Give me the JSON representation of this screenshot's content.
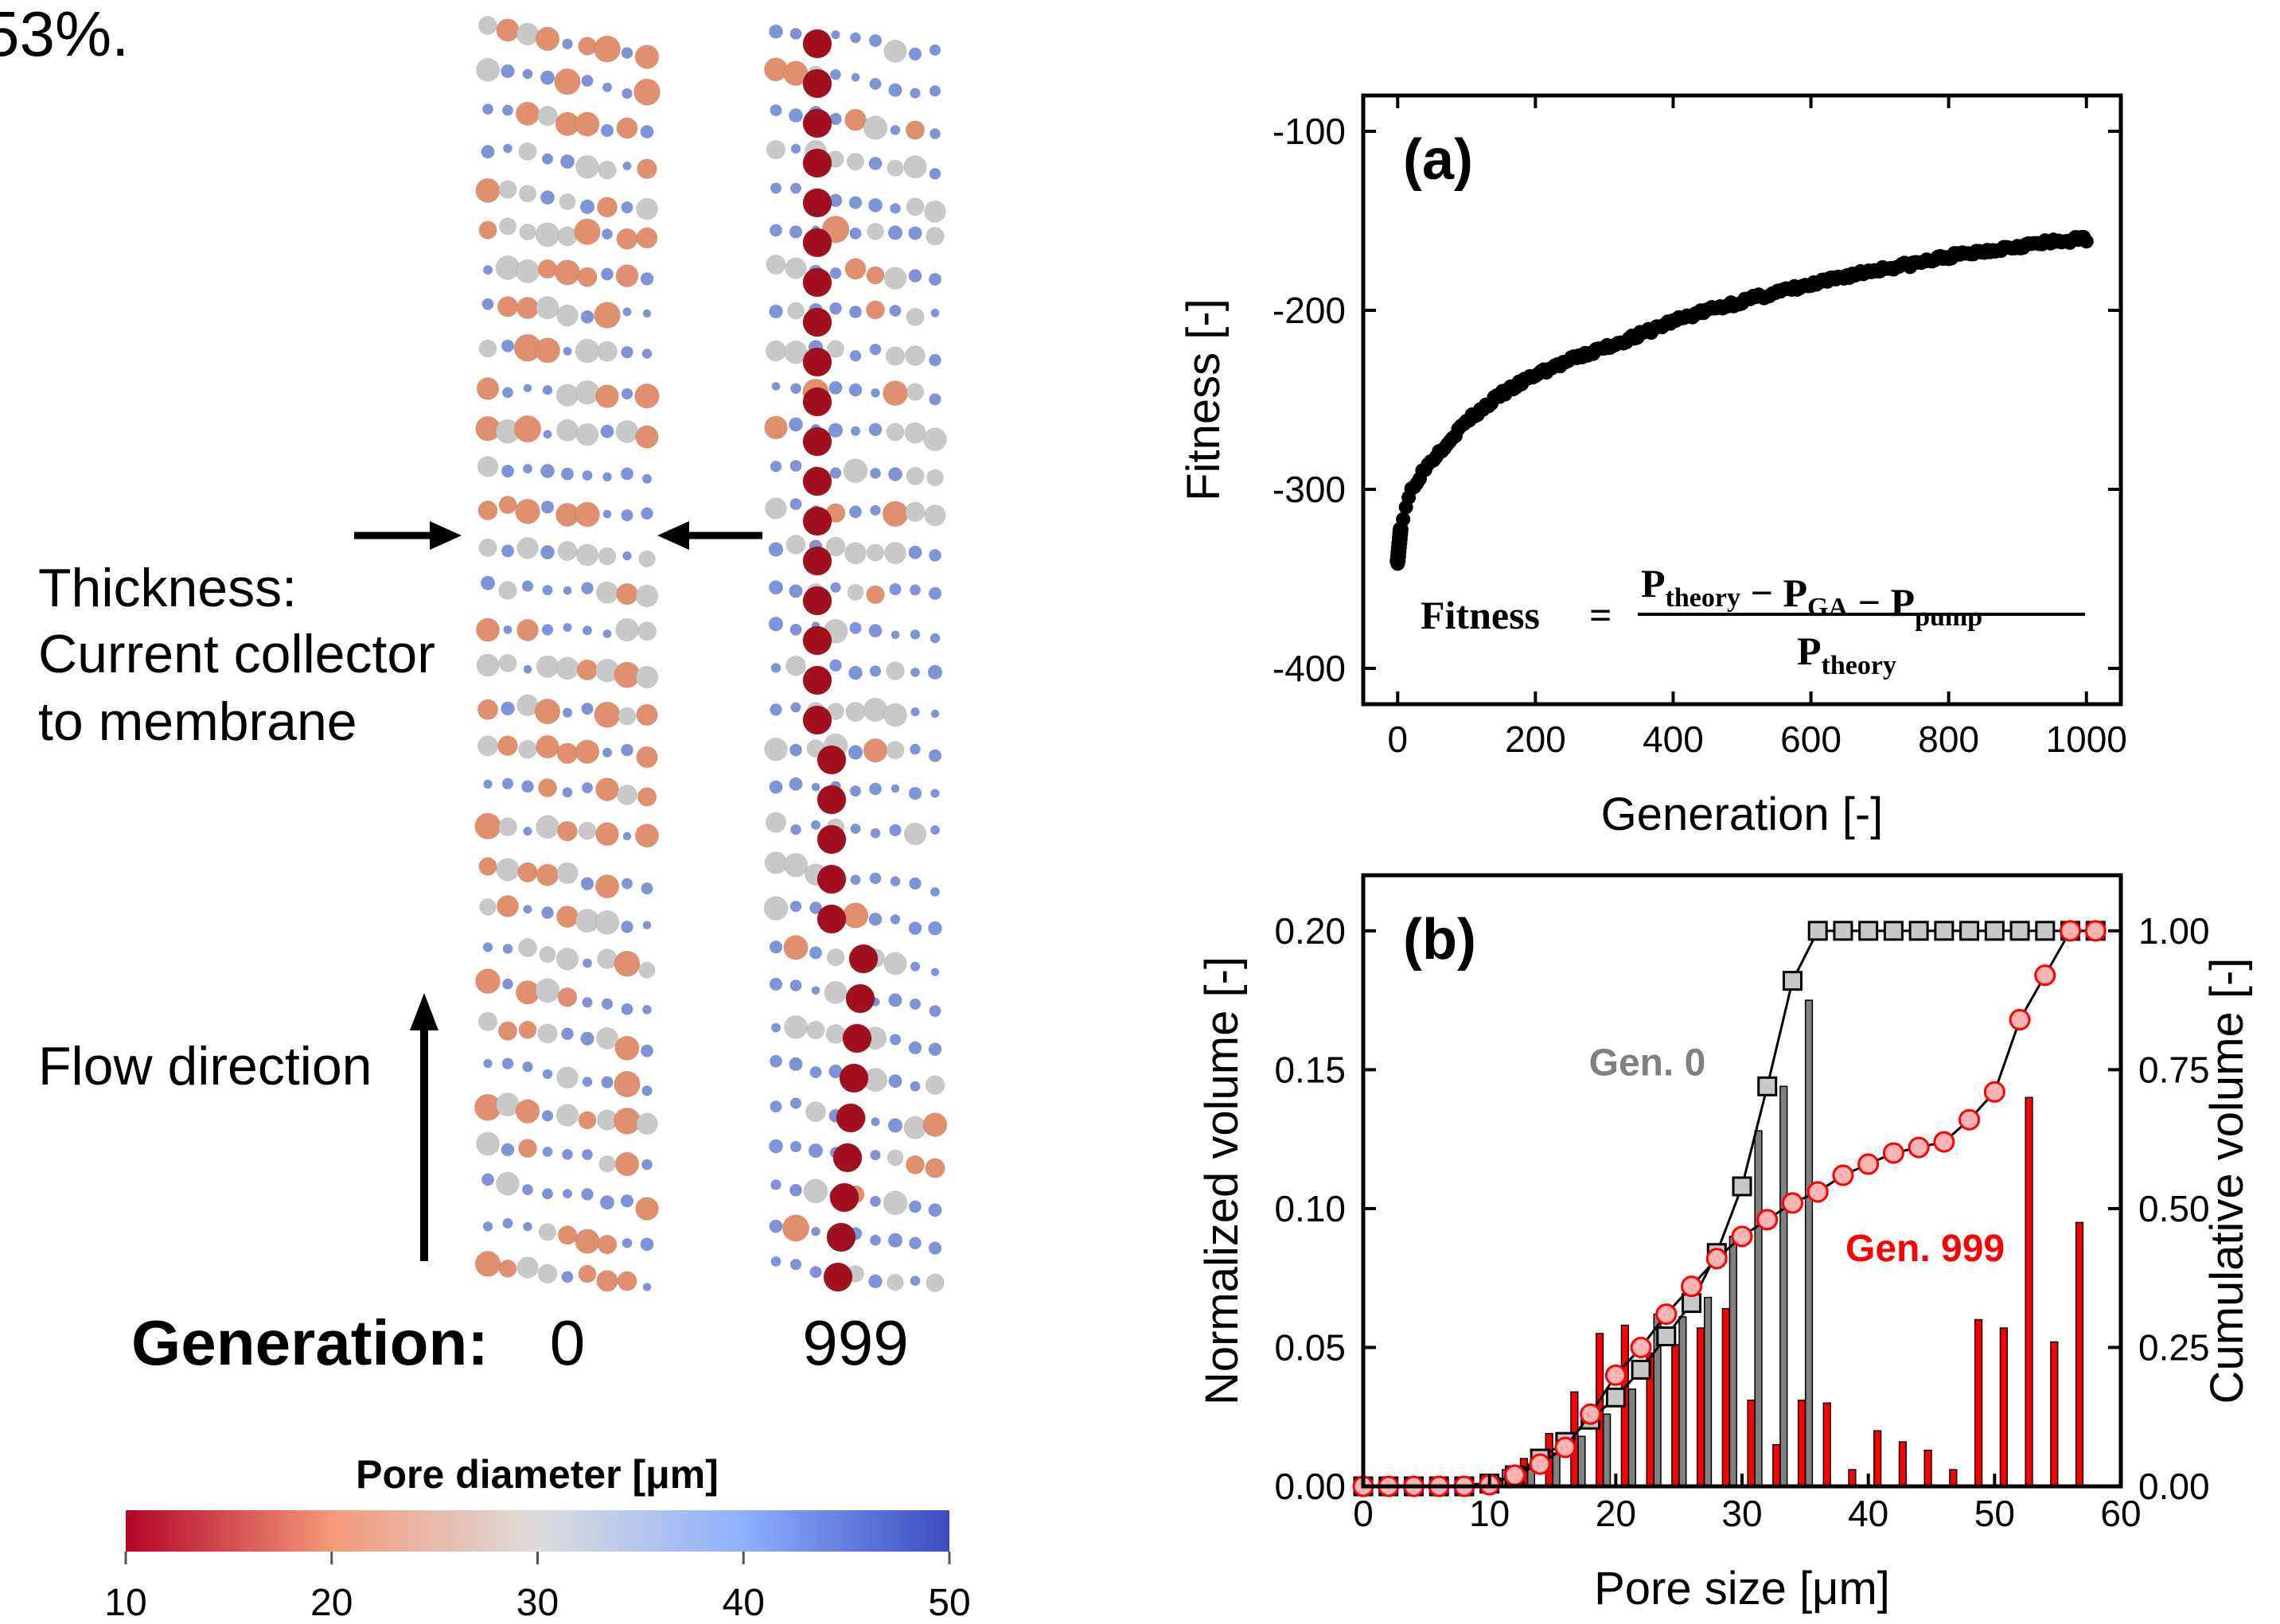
{
  "left_panel": {
    "corner_text": "53%.",
    "thickness_label_lines": [
      "Thickness:",
      "Current collector",
      "to membrane"
    ],
    "flow_label": "Flow direction",
    "generation_label": "Generation:",
    "generation_values": [
      "0",
      "999"
    ],
    "colorbar": {
      "title": "Pore diameter [μm]",
      "ticks": [
        "10",
        "20",
        "30",
        "40",
        "50"
      ],
      "range": [
        10,
        50
      ],
      "colors": [
        "#b40426",
        "#f4987a",
        "#dddcdc",
        "#8db0fe",
        "#3b4cc0"
      ]
    }
  },
  "chart_data": [
    {
      "type": "scatter",
      "panel_label": "(a)",
      "xlabel": "Generation [-]",
      "ylabel": "Fitness [-]",
      "xlim": [
        -50,
        1050
      ],
      "ylim": [
        -420,
        -80
      ],
      "xticks": [
        0,
        200,
        400,
        600,
        800,
        1000
      ],
      "yticks": [
        -100,
        -200,
        -300,
        -400
      ],
      "xtick_labels": [
        "0",
        "200",
        "400",
        "600",
        "800",
        "1000"
      ],
      "ytick_labels": [
        "-100",
        "-200",
        "-300",
        "-400"
      ],
      "grid": false,
      "curve_points": [
        [
          0,
          -340
        ],
        [
          2,
          -332
        ],
        [
          5,
          -322
        ],
        [
          10,
          -312
        ],
        [
          20,
          -300
        ],
        [
          40,
          -288
        ],
        [
          60,
          -279
        ],
        [
          100,
          -262
        ],
        [
          150,
          -247
        ],
        [
          200,
          -236
        ],
        [
          250,
          -228
        ],
        [
          300,
          -221
        ],
        [
          350,
          -214
        ],
        [
          400,
          -206
        ],
        [
          450,
          -200
        ],
        [
          500,
          -195
        ],
        [
          550,
          -190
        ],
        [
          600,
          -186
        ],
        [
          650,
          -181
        ],
        [
          700,
          -177
        ],
        [
          750,
          -174
        ],
        [
          800,
          -170
        ],
        [
          850,
          -167
        ],
        [
          900,
          -164
        ],
        [
          950,
          -162
        ],
        [
          1000,
          -160
        ]
      ],
      "series_color": "#000000",
      "formula": {
        "lhs": "Fitness",
        "eq": "=",
        "num_parts": [
          [
            "P",
            "theory"
          ],
          [
            "−",
            ""
          ],
          [
            "P",
            "GA"
          ],
          [
            "−",
            ""
          ],
          [
            "P",
            "pump"
          ]
        ],
        "den": [
          "P",
          "theory"
        ]
      }
    },
    {
      "type": "bar",
      "panel_label": "(b)",
      "xlabel": "Pore size [μm]",
      "ylabel": "Normalized volume [-]",
      "y2label": "Cumulative volume [-]",
      "xlim": [
        0,
        60
      ],
      "ylim": [
        0,
        0.22
      ],
      "y2lim": [
        0,
        1.1
      ],
      "xticks": [
        0,
        10,
        20,
        30,
        40,
        50,
        60
      ],
      "yticks": [
        0.0,
        0.05,
        0.1,
        0.15,
        0.2
      ],
      "y2ticks": [
        0.0,
        0.25,
        0.5,
        0.75,
        1.0
      ],
      "xtick_labels": [
        "0",
        "10",
        "20",
        "30",
        "40",
        "50",
        "60"
      ],
      "ytick_labels": [
        "0.00",
        "0.05",
        "0.10",
        "0.15",
        "0.20"
      ],
      "y2tick_labels": [
        "0.00",
        "0.25",
        "0.50",
        "0.75",
        "1.00"
      ],
      "grid": false,
      "annotations": [
        {
          "text": "Gen. 0",
          "x": 22.5,
          "y": 0.148,
          "color": "#808080"
        },
        {
          "text": "Gen. 999",
          "x": 44.5,
          "y": 0.081,
          "color": "#ff0000"
        }
      ],
      "bar_series": [
        {
          "name": "Gen. 0",
          "color": "#808080",
          "x": [
            9,
            11,
            13,
            15,
            17,
            19,
            21,
            23,
            25,
            27,
            29,
            31,
            33,
            35
          ],
          "values": [
            0.001,
            0.006,
            0.008,
            0.012,
            0.018,
            0.026,
            0.035,
            0.062,
            0.061,
            0.068,
            0.09,
            0.128,
            0.144,
            0.175
          ]
        },
        {
          "name": "Gen. 999",
          "color": "#ff0000",
          "x": [
            9,
            11,
            13,
            15,
            17,
            19,
            21,
            23,
            25,
            27,
            29,
            31,
            33,
            35,
            37,
            39,
            41,
            43,
            45,
            47,
            49,
            51,
            53,
            55,
            57
          ],
          "values": [
            0.001,
            0.003,
            0.01,
            0.019,
            0.034,
            0.055,
            0.058,
            0.048,
            0.051,
            0.057,
            0.064,
            0.031,
            0.015,
            0.031,
            0.03,
            0.006,
            0.02,
            0.016,
            0.013,
            0.006,
            0.06,
            0.057,
            0.14,
            0.052,
            0.095
          ]
        }
      ],
      "cumulative_series": [
        {
          "name": "Gen. 0",
          "marker": "square",
          "fill": "#c8c8c8",
          "edge": "#000000",
          "x": [
            0,
            2,
            4,
            6,
            8,
            10,
            12,
            14,
            16,
            18,
            20,
            22,
            24,
            26,
            28,
            30,
            32,
            34,
            36,
            38,
            40,
            42,
            44,
            46,
            48,
            50,
            52,
            54,
            56,
            58
          ],
          "values": [
            0,
            0,
            0,
            0,
            0,
            0.005,
            0.02,
            0.05,
            0.08,
            0.12,
            0.16,
            0.21,
            0.27,
            0.33,
            0.42,
            0.54,
            0.72,
            0.91,
            1,
            1,
            1,
            1,
            1,
            1,
            1,
            1,
            1,
            1,
            1,
            1
          ]
        },
        {
          "name": "Gen. 999",
          "marker": "circle",
          "fill": "#ffb4b4",
          "edge": "#ff0000",
          "x": [
            0,
            2,
            4,
            6,
            8,
            10,
            12,
            14,
            16,
            18,
            20,
            22,
            24,
            26,
            28,
            30,
            32,
            34,
            36,
            38,
            40,
            42,
            44,
            46,
            48,
            50,
            52,
            54,
            56,
            58
          ],
          "values": [
            0,
            0,
            0,
            0,
            0,
            0.003,
            0.02,
            0.04,
            0.07,
            0.13,
            0.2,
            0.25,
            0.31,
            0.36,
            0.41,
            0.45,
            0.48,
            0.51,
            0.53,
            0.56,
            0.58,
            0.6,
            0.61,
            0.62,
            0.66,
            0.71,
            0.84,
            0.92,
            1,
            1
          ]
        }
      ]
    }
  ]
}
